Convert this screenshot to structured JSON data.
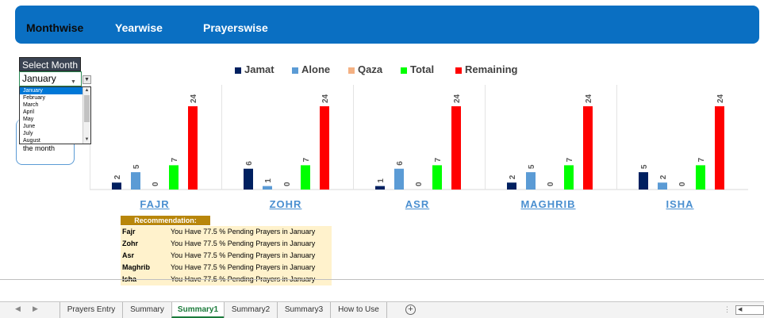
{
  "nav_tabs": [
    {
      "label": "Monthwise"
    },
    {
      "label": "Yearwise"
    },
    {
      "label": "Prayerswise"
    }
  ],
  "month_selector": {
    "label": "Select Month",
    "selected": "January",
    "options": [
      "January",
      "February",
      "March",
      "April",
      "May",
      "June",
      "July",
      "August"
    ]
  },
  "side_note": "the month",
  "colors": {
    "banner": "#0a6fc2",
    "jamat": "#002060",
    "alone": "#5b9bd5",
    "qaza": "#f4b183",
    "total": "#00ff00",
    "remaining": "#ff0000"
  },
  "chart_data": {
    "type": "bar",
    "categories": [
      "FAJR",
      "ZOHR",
      "ASR",
      "MAGHRIB",
      "ISHA"
    ],
    "series": [
      {
        "name": "Jamat",
        "values": [
          2,
          6,
          1,
          2,
          5
        ]
      },
      {
        "name": "Alone",
        "values": [
          5,
          1,
          6,
          5,
          2
        ]
      },
      {
        "name": "Qaza",
        "values": [
          0,
          0,
          0,
          0,
          0
        ]
      },
      {
        "name": "Total",
        "values": [
          7,
          7,
          7,
          7,
          7
        ]
      },
      {
        "name": "Remaining",
        "values": [
          24,
          24,
          24,
          24,
          24
        ]
      }
    ],
    "ylim": [
      0,
      24
    ],
    "legend": "top",
    "grid": false
  },
  "recommendation": {
    "title": "Recommendation:",
    "rows": [
      {
        "name": "Fajr",
        "message": "You Have 77.5 % Pending Prayers in January"
      },
      {
        "name": "Zohr",
        "message": "You Have 77.5 % Pending Prayers in January"
      },
      {
        "name": "Asr",
        "message": "You Have 77.5 % Pending Prayers in January"
      },
      {
        "name": "Maghrib",
        "message": "You Have 77.5 % Pending Prayers in January"
      },
      {
        "name": "Isha",
        "message": "You Have 77.5 % Pending Prayers in January"
      }
    ]
  },
  "sheet_tabs": [
    {
      "label": "Prayers Entry"
    },
    {
      "label": "Summary"
    },
    {
      "label": "Summary1",
      "active": true
    },
    {
      "label": "Summary2"
    },
    {
      "label": "Summary3"
    },
    {
      "label": "How to Use"
    }
  ]
}
